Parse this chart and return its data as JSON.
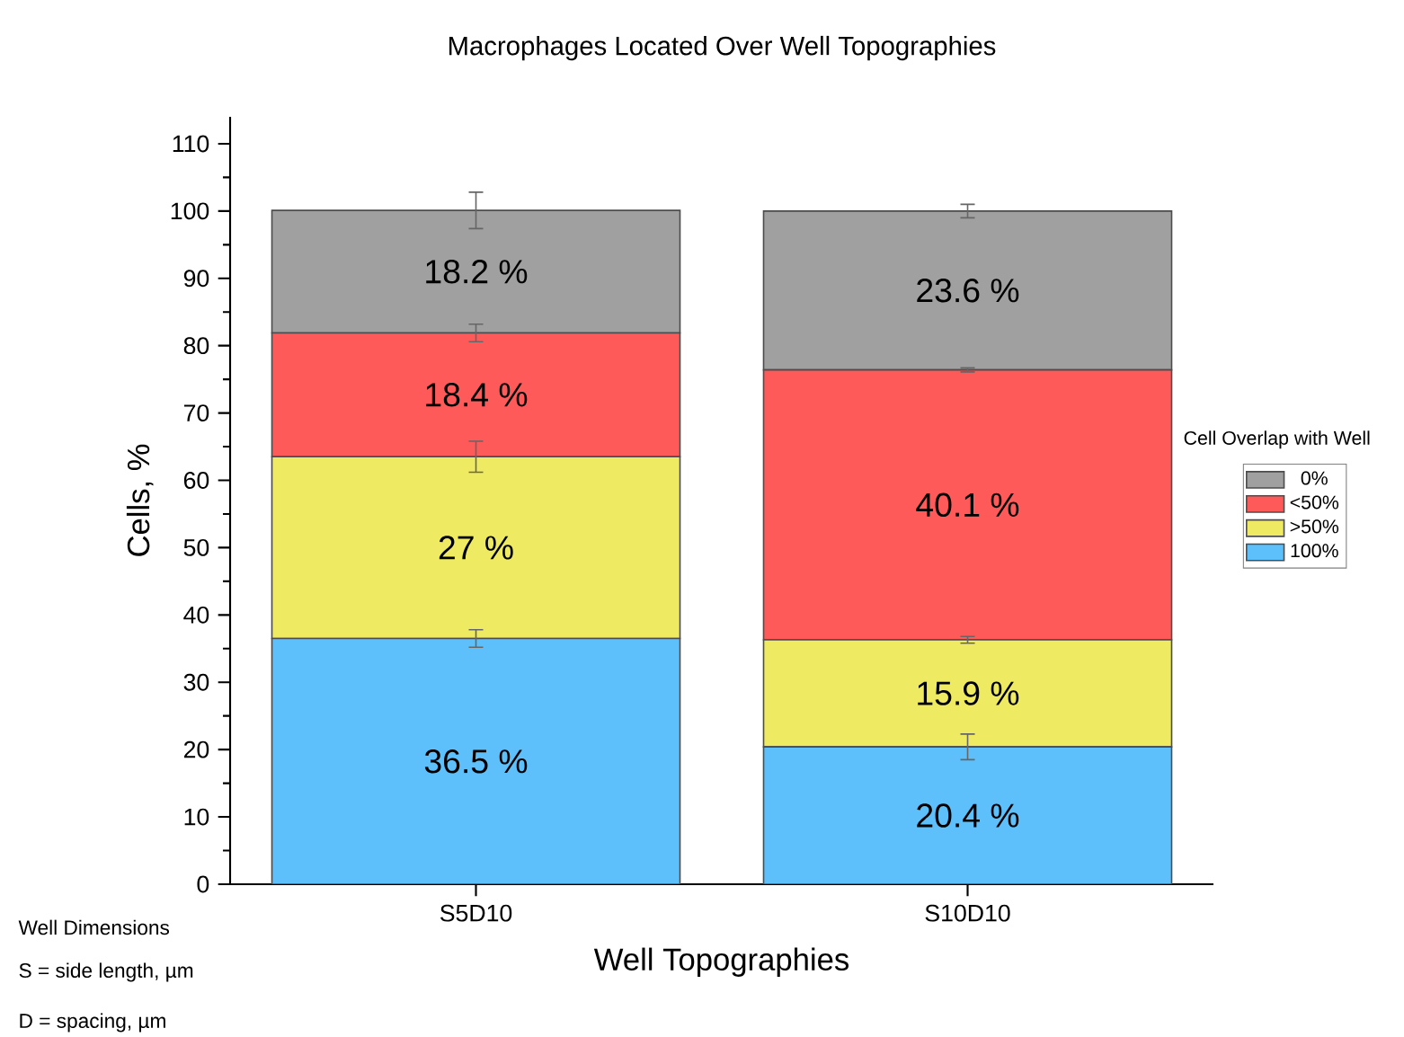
{
  "chart_data": {
    "type": "bar",
    "stacked": true,
    "title": "Macrophages Located Over Well Topographies",
    "xlabel": "Well Topographies",
    "ylabel": "Cells, %",
    "legend_title": "Cell Overlap with Well",
    "legend": "right",
    "categories": [
      "S5D10",
      "S10D10"
    ],
    "ylim": [
      0,
      114
    ],
    "yticks": [
      0,
      10,
      20,
      30,
      40,
      50,
      60,
      70,
      80,
      90,
      100,
      110
    ],
    "series": [
      {
        "name": "100%",
        "color": "#5ec0fa",
        "values": [
          36.5,
          20.4
        ],
        "errors": [
          1.3,
          1.9
        ],
        "value_labels": [
          "36.5 %",
          "20.4 %"
        ]
      },
      {
        "name": ">50%",
        "color": "#eeea62",
        "values": [
          27,
          15.9
        ],
        "errors": [
          2.3,
          0.5
        ],
        "value_labels": [
          "27 %",
          "15.9 %"
        ]
      },
      {
        "name": "<50%",
        "color": "#ff5a5a",
        "values": [
          18.4,
          40.1
        ],
        "errors": [
          1.3,
          0.3
        ],
        "value_labels": [
          "18.4 %",
          "40.1 %"
        ]
      },
      {
        "name": "0%",
        "color": "#a0a0a0",
        "values": [
          18.2,
          23.6
        ],
        "errors": [
          2.7,
          1.0
        ],
        "value_labels": [
          "18.2 %",
          "23.6 %"
        ]
      }
    ],
    "annotations": [
      "Well Dimensions",
      "S = side length, µm",
      "D = spacing, µm"
    ]
  }
}
